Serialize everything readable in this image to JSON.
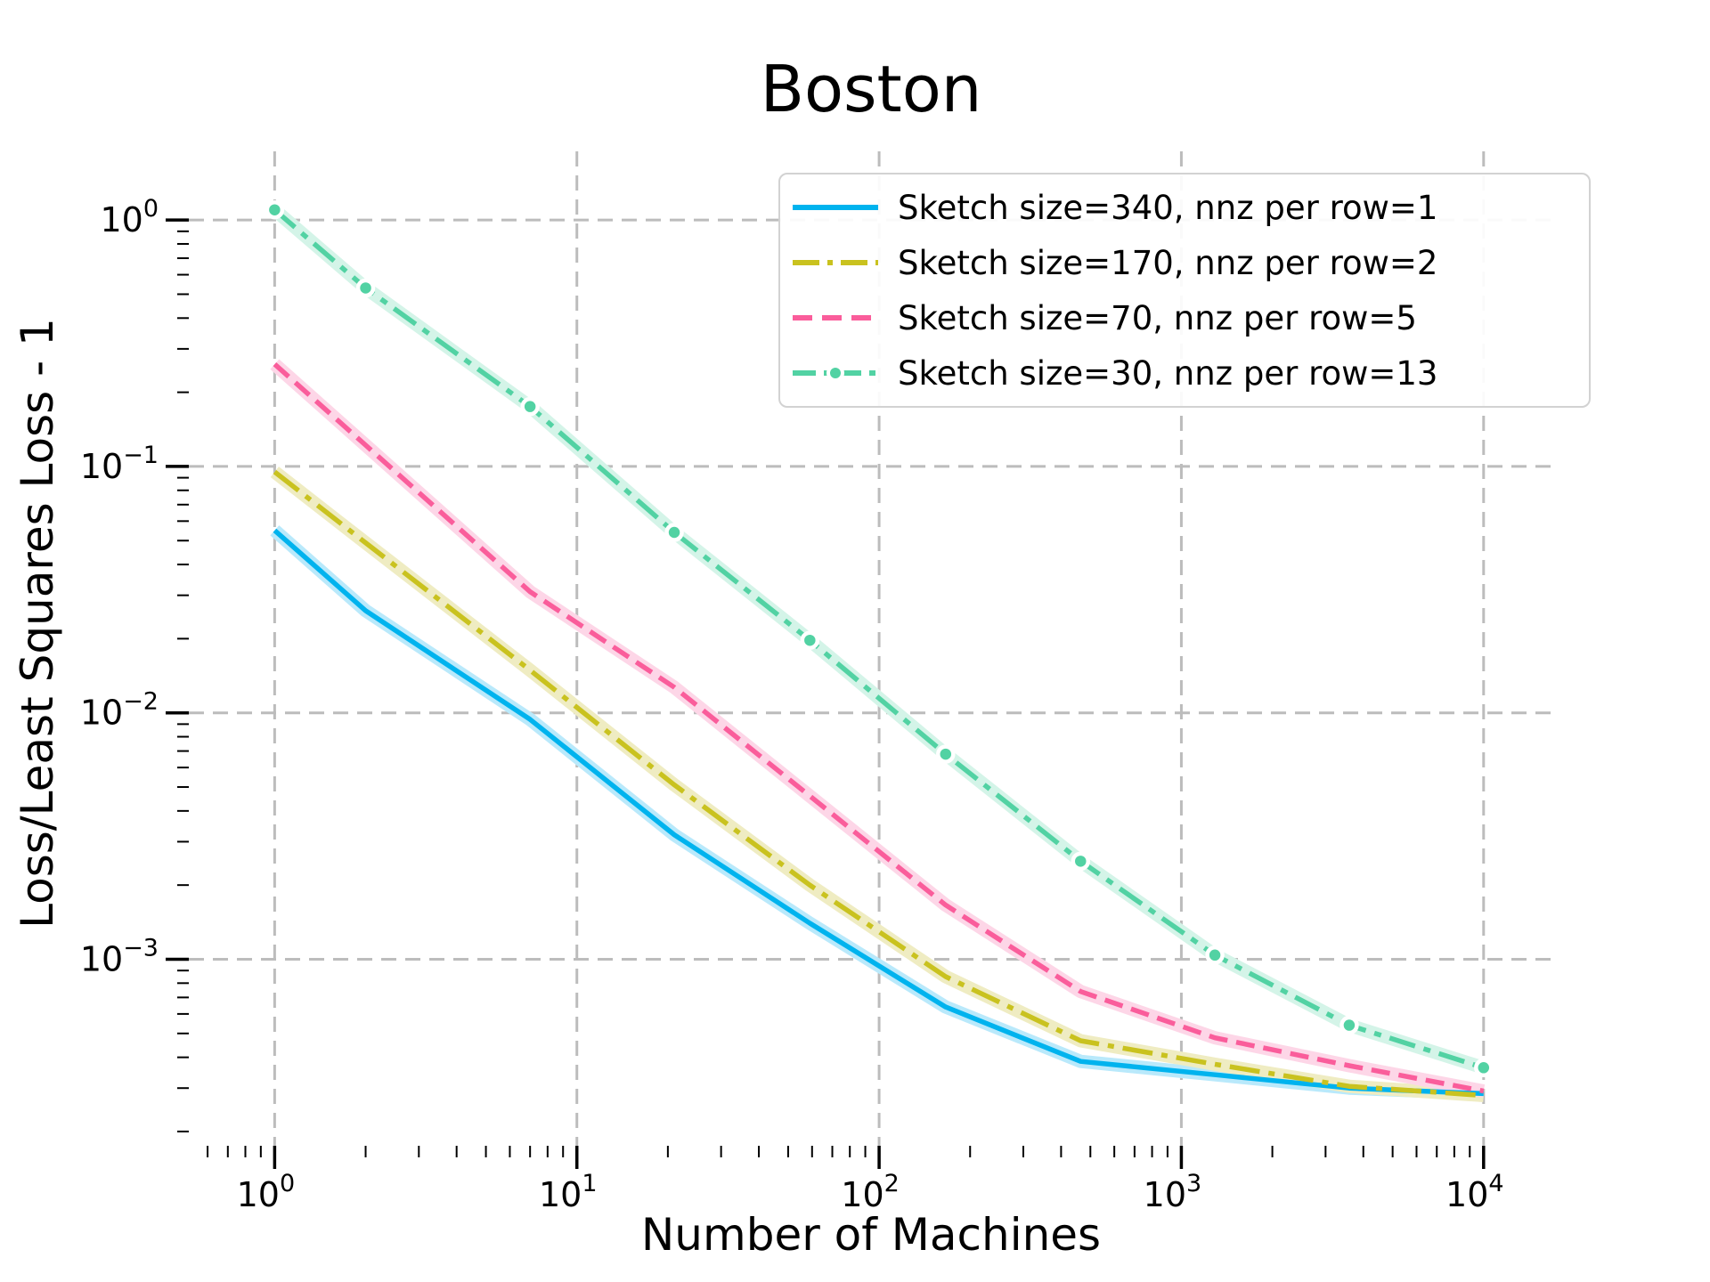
{
  "figure": {
    "title": "Boston"
  },
  "chart_data": {
    "type": "line",
    "title": "Boston",
    "xlabel": "Number of Machines",
    "ylabel": "Loss/Least Squares Loss - 1",
    "xscale": "log",
    "yscale": "log",
    "grid": true,
    "grid_style": "dashed",
    "grid_color": "#bcbcbc",
    "legend_position": "upper right",
    "xlim": [
      0.52,
      17000
    ],
    "ylim": [
      0.000175,
      1.9
    ],
    "x": [
      1,
      2,
      7,
      21,
      59,
      166,
      464,
      1291,
      3593,
      10000
    ],
    "series": [
      {
        "label": "Sketch size=340, nnz per row=1",
        "color": "#00b3ee",
        "band_color": "#b9e9fb",
        "dash": "solid",
        "marker": "none",
        "values": [
          0.055,
          0.026,
          0.0094,
          0.0032,
          0.0014,
          0.00064,
          0.000385,
          0.00034,
          0.0003,
          0.000285
        ]
      },
      {
        "label": "Sketch size=170, nnz per row=2",
        "color": "#c9c21f",
        "band_color": "#efecc2",
        "dash": "dashdot",
        "marker": "none",
        "values": [
          0.095,
          0.049,
          0.0149,
          0.0051,
          0.002,
          0.00085,
          0.000467,
          0.000375,
          0.000305,
          0.00028
        ]
      },
      {
        "label": "Sketch size=70, nnz per row=5",
        "color": "#fa5d9b",
        "band_color": "#fdd6e7",
        "dash": "dashed",
        "marker": "none",
        "values": [
          0.26,
          0.122,
          0.031,
          0.0127,
          0.0046,
          0.00166,
          0.00074,
          0.00048,
          0.00037,
          0.000292
        ]
      },
      {
        "label": "Sketch size=30, nnz per row=13",
        "color": "#52d2a3",
        "band_color": "#d4f4e8",
        "dash": "dashdotdot",
        "marker": "circle",
        "values": [
          1.1,
          0.53,
          0.175,
          0.054,
          0.0197,
          0.0068,
          0.0025,
          0.00104,
          0.00054,
          0.000363
        ]
      }
    ],
    "tick_base": "10",
    "x_ticks": [
      {
        "value": 1,
        "exp": "0"
      },
      {
        "value": 10,
        "exp": "1"
      },
      {
        "value": 100,
        "exp": "2"
      },
      {
        "value": 1000,
        "exp": "3"
      },
      {
        "value": 10000,
        "exp": "4"
      }
    ],
    "y_ticks": [
      {
        "value": 1,
        "exp": "0"
      },
      {
        "value": 0.1,
        "exp": "−1"
      },
      {
        "value": 0.01,
        "exp": "−2"
      },
      {
        "value": 0.001,
        "exp": "−3"
      }
    ]
  }
}
